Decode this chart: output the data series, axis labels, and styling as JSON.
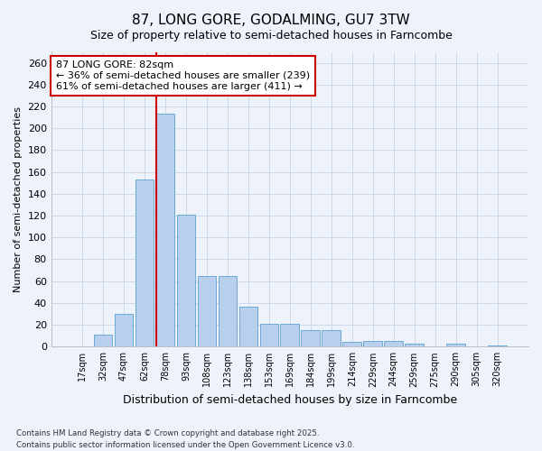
{
  "title": "87, LONG GORE, GODALMING, GU7 3TW",
  "subtitle": "Size of property relative to semi-detached houses in Farncombe",
  "xlabel": "Distribution of semi-detached houses by size in Farncombe",
  "ylabel": "Number of semi-detached properties",
  "categories": [
    "17sqm",
    "32sqm",
    "47sqm",
    "62sqm",
    "78sqm",
    "93sqm",
    "108sqm",
    "123sqm",
    "138sqm",
    "153sqm",
    "169sqm",
    "184sqm",
    "199sqm",
    "214sqm",
    "229sqm",
    "244sqm",
    "259sqm",
    "275sqm",
    "290sqm",
    "305sqm",
    "320sqm"
  ],
  "bar_values": [
    0,
    11,
    30,
    153,
    213,
    121,
    65,
    65,
    37,
    21,
    21,
    15,
    15,
    4,
    5,
    5,
    3,
    0,
    3,
    0,
    1
  ],
  "bar_color": "#b8d0ed",
  "bar_edge_color": "#6aaad4",
  "ref_line_index": 4,
  "ref_line_color": "#cc0000",
  "annotation_line1": "87 LONG GORE: 82sqm",
  "annotation_line2": "← 36% of semi-detached houses are smaller (239)",
  "annotation_line3": "61% of semi-detached houses are larger (411) →",
  "annotation_box_color": "#ffffff",
  "annotation_box_edge": "#cc0000",
  "ylim": [
    0,
    270
  ],
  "yticks": [
    0,
    20,
    40,
    60,
    80,
    100,
    120,
    140,
    160,
    180,
    200,
    220,
    240,
    260
  ],
  "footer": "Contains HM Land Registry data © Crown copyright and database right 2025.\nContains public sector information licensed under the Open Government Licence v3.0.",
  "bg_color": "#eef2fb",
  "grid_color": "#c8d4e8"
}
